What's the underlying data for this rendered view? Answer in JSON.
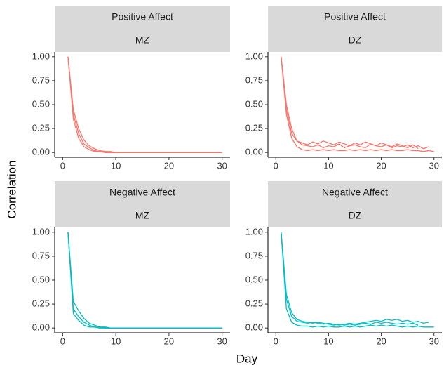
{
  "axis_labels": {
    "x": "Day",
    "y": "Correlation"
  },
  "chart_data": [
    {
      "type": "line",
      "strip_top": "Positive Affect",
      "strip_bottom": "MZ",
      "color": "#f8766d",
      "xlim": [
        -1.5,
        31.5
      ],
      "ylim": [
        -0.05,
        1.05
      ],
      "xticks": [
        0,
        10,
        20,
        30
      ],
      "yticks": [
        {
          "value": 0,
          "label": "0.00"
        },
        {
          "value": 0.25,
          "label": "0.25"
        },
        {
          "value": 0.5,
          "label": "0.50"
        },
        {
          "value": 0.75,
          "label": "0.75"
        },
        {
          "value": 1,
          "label": "1.00"
        }
      ],
      "x": [
        1,
        2,
        3,
        4,
        5,
        6,
        7,
        8,
        9,
        10,
        11,
        12,
        13,
        14,
        15,
        16,
        17,
        18,
        19,
        20,
        21,
        22,
        23,
        24,
        25,
        26,
        27,
        28,
        29,
        30
      ],
      "series": [
        {
          "values": [
            1,
            0.35,
            0.15,
            0.06,
            0.03,
            0.01,
            0.01,
            0,
            0,
            0,
            0,
            0,
            0,
            0,
            0,
            0,
            0,
            0,
            0,
            0,
            0,
            0,
            0,
            0,
            0,
            0,
            0,
            0,
            0,
            0
          ]
        },
        {
          "values": [
            1,
            0.45,
            0.25,
            0.13,
            0.07,
            0.04,
            0.02,
            0.01,
            0.01,
            0,
            0,
            0,
            0,
            0,
            0,
            0,
            0,
            0,
            0,
            0,
            0,
            0,
            0,
            0,
            0,
            0,
            0,
            0,
            0,
            0
          ]
        },
        {
          "values": [
            1,
            0.4,
            0.2,
            0.09,
            0.05,
            0.02,
            0.01,
            0,
            0,
            0,
            0,
            0,
            0,
            0,
            0,
            0,
            0,
            0,
            0,
            0,
            0,
            0,
            0,
            0,
            0,
            0,
            0,
            0,
            0,
            0
          ]
        }
      ]
    },
    {
      "type": "line",
      "strip_top": "Positive Affect",
      "strip_bottom": "DZ",
      "color": "#f8766d",
      "xlim": [
        -1.5,
        31.5
      ],
      "ylim": [
        -0.05,
        1.05
      ],
      "xticks": [
        0,
        10,
        20,
        30
      ],
      "yticks": [
        {
          "value": 0,
          "label": "0.00"
        },
        {
          "value": 0.25,
          "label": "0.25"
        },
        {
          "value": 0.5,
          "label": "0.50"
        },
        {
          "value": 0.75,
          "label": "0.75"
        },
        {
          "value": 1,
          "label": "1.00"
        }
      ],
      "x": [
        1,
        2,
        3,
        4,
        5,
        6,
        7,
        8,
        9,
        10,
        11,
        12,
        13,
        14,
        15,
        16,
        17,
        18,
        19,
        20,
        21,
        22,
        23,
        24,
        25,
        26,
        27,
        28,
        29,
        30
      ],
      "series": [
        {
          "values": [
            1,
            0.45,
            0.2,
            0.12,
            0.08,
            0.07,
            0.06,
            0.08,
            0.05,
            0.07,
            0.06,
            0.09,
            0.05,
            0.07,
            0.08,
            0.06,
            0.05,
            0.09,
            0.07,
            0.06,
            0.08,
            0.05,
            0.07,
            0.06,
            0.08,
            0.05,
            0.07,
            0.04,
            0.06,
            null
          ]
        },
        {
          "values": [
            1,
            0.4,
            0.15,
            0.06,
            0.03,
            0.02,
            0.03,
            0.02,
            0.03,
            0.02,
            0.03,
            0.02,
            0.02,
            0.03,
            0.02,
            0.03,
            0.02,
            0.03,
            0.02,
            0.03,
            0.02,
            0.03,
            0.02,
            0.02,
            0.03,
            0.02,
            0.02,
            0.01,
            0.02,
            0.01
          ]
        },
        {
          "values": [
            1,
            0.5,
            0.25,
            0.12,
            0.1,
            0.08,
            0.11,
            0.09,
            0.12,
            0.1,
            0.08,
            0.11,
            0.09,
            0.07,
            0.1,
            0.08,
            0.11,
            0.09,
            0.07,
            0.1,
            0.08,
            0.06,
            0.09,
            0.07,
            0.05,
            0.08,
            0.04,
            null,
            null,
            null
          ]
        }
      ]
    },
    {
      "type": "line",
      "strip_top": "Negative Affect",
      "strip_bottom": "MZ",
      "color": "#00bfc4",
      "xlim": [
        -1.5,
        31.5
      ],
      "ylim": [
        -0.05,
        1.05
      ],
      "xticks": [
        0,
        10,
        20,
        30
      ],
      "yticks": [
        {
          "value": 0,
          "label": "0.00"
        },
        {
          "value": 0.25,
          "label": "0.25"
        },
        {
          "value": 0.5,
          "label": "0.50"
        },
        {
          "value": 0.75,
          "label": "0.75"
        },
        {
          "value": 1,
          "label": "1.00"
        }
      ],
      "x": [
        1,
        2,
        3,
        4,
        5,
        6,
        7,
        8,
        9,
        10,
        11,
        12,
        13,
        14,
        15,
        16,
        17,
        18,
        19,
        20,
        21,
        22,
        23,
        24,
        25,
        26,
        27,
        28,
        29,
        30
      ],
      "series": [
        {
          "values": [
            1,
            0.15,
            0.08,
            0.03,
            0.01,
            0.01,
            0,
            0,
            0,
            0,
            0,
            0,
            0,
            0,
            0,
            0,
            0,
            0,
            0,
            0,
            0,
            0,
            0,
            0,
            0,
            0,
            0,
            0,
            0,
            0
          ]
        },
        {
          "values": [
            1,
            0.28,
            0.18,
            0.1,
            0.05,
            0.03,
            0.01,
            0.01,
            0,
            0,
            0,
            0,
            0,
            0,
            0,
            0,
            0,
            0,
            0,
            0,
            0,
            0,
            0,
            0,
            0,
            0,
            0,
            0,
            0,
            0
          ]
        },
        {
          "values": [
            1,
            0.2,
            0.12,
            0.06,
            0.03,
            0.01,
            0.01,
            0,
            0,
            0,
            0,
            0,
            0,
            0,
            0,
            0,
            0,
            0,
            0,
            0,
            0,
            0,
            0,
            0,
            0,
            0,
            0,
            0,
            0,
            0
          ]
        }
      ]
    },
    {
      "type": "line",
      "strip_top": "Negative Affect",
      "strip_bottom": "DZ",
      "color": "#00bfc4",
      "xlim": [
        -1.5,
        31.5
      ],
      "ylim": [
        -0.05,
        1.05
      ],
      "xticks": [
        0,
        10,
        20,
        30
      ],
      "yticks": [
        {
          "value": 0,
          "label": "0.00"
        },
        {
          "value": 0.25,
          "label": "0.25"
        },
        {
          "value": 0.5,
          "label": "0.50"
        },
        {
          "value": 0.75,
          "label": "0.75"
        },
        {
          "value": 1,
          "label": "1.00"
        }
      ],
      "x": [
        1,
        2,
        3,
        4,
        5,
        6,
        7,
        8,
        9,
        10,
        11,
        12,
        13,
        14,
        15,
        16,
        17,
        18,
        19,
        20,
        21,
        22,
        23,
        24,
        25,
        26,
        27,
        28,
        29,
        30
      ],
      "series": [
        {
          "values": [
            1,
            0.3,
            0.12,
            0.07,
            0.06,
            0.05,
            0.06,
            0.05,
            0.04,
            0.05,
            0.04,
            0.03,
            0.04,
            0.05,
            0.04,
            0.05,
            0.06,
            0.07,
            0.08,
            0.07,
            0.09,
            0.08,
            0.09,
            0.07,
            0.08,
            0.06,
            0.07,
            0.05,
            0.06,
            null
          ]
        },
        {
          "values": [
            1,
            0.2,
            0.06,
            0.03,
            0.02,
            0.02,
            0.01,
            0.02,
            0.01,
            0.02,
            0.01,
            0.01,
            0.02,
            0.01,
            0.02,
            0.01,
            0.02,
            0.03,
            0.02,
            0.03,
            0.02,
            0.03,
            0.02,
            0.01,
            0.02,
            0.01,
            0.02,
            0.01,
            0.01,
            0.01
          ]
        },
        {
          "values": [
            1,
            0.35,
            0.16,
            0.09,
            0.07,
            0.06,
            0.05,
            0.06,
            0.05,
            0.04,
            0.03,
            0.04,
            0.03,
            0.04,
            0.03,
            0.04,
            0.05,
            0.04,
            0.06,
            0.05,
            0.06,
            0.05,
            0.04,
            0.05,
            0.04,
            0.05,
            0.03,
            null,
            null,
            null
          ]
        }
      ]
    }
  ]
}
